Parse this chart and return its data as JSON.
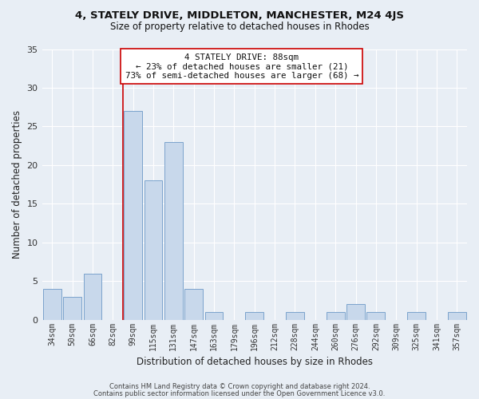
{
  "title1": "4, STATELY DRIVE, MIDDLETON, MANCHESTER, M24 4JS",
  "title2": "Size of property relative to detached houses in Rhodes",
  "xlabel": "Distribution of detached houses by size in Rhodes",
  "ylabel": "Number of detached properties",
  "bar_labels": [
    "34sqm",
    "50sqm",
    "66sqm",
    "82sqm",
    "99sqm",
    "115sqm",
    "131sqm",
    "147sqm",
    "163sqm",
    "179sqm",
    "196sqm",
    "212sqm",
    "228sqm",
    "244sqm",
    "260sqm",
    "276sqm",
    "292sqm",
    "309sqm",
    "325sqm",
    "341sqm",
    "357sqm"
  ],
  "bar_values": [
    4,
    3,
    6,
    0,
    27,
    18,
    23,
    4,
    1,
    0,
    1,
    0,
    1,
    0,
    1,
    2,
    1,
    0,
    1,
    0,
    1
  ],
  "bar_color": "#c8d8eb",
  "bar_edgecolor": "#7ba3cc",
  "highlight_line_color": "#cc0000",
  "annotation_line1": "4 STATELY DRIVE: 88sqm",
  "annotation_line2": "← 23% of detached houses are smaller (21)",
  "annotation_line3": "73% of semi-detached houses are larger (68) →",
  "annotation_box_edgecolor": "#cc0000",
  "ylim": [
    0,
    35
  ],
  "yticks": [
    0,
    5,
    10,
    15,
    20,
    25,
    30,
    35
  ],
  "footer1": "Contains HM Land Registry data © Crown copyright and database right 2024.",
  "footer2": "Contains public sector information licensed under the Open Government Licence v3.0.",
  "bg_color": "#e8eef5",
  "plot_bg_color": "#e8eef5",
  "grid_color": "#ffffff",
  "title1_fontsize": 9.5,
  "title2_fontsize": 8.5
}
